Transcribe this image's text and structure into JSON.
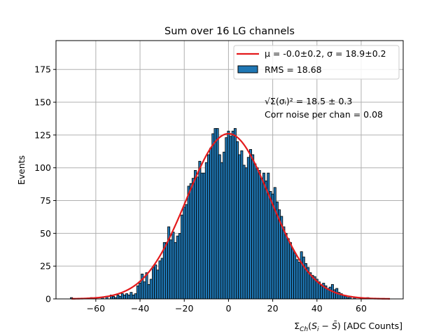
{
  "chart_data": {
    "type": "bar",
    "title": "Sum over 16 LG channels",
    "xlabel": "Σ_Ch(S_i − S̄) [ADC Counts]",
    "ylabel": "Events",
    "xlim": [
      -78,
      79
    ],
    "ylim": [
      0,
      197
    ],
    "xticks": [
      -60,
      -40,
      -20,
      0,
      20,
      40,
      60
    ],
    "yticks": [
      0,
      25,
      50,
      75,
      100,
      125,
      150,
      175
    ],
    "xtick_labels": [
      "−60",
      "−40",
      "−20",
      "0",
      "20",
      "40",
      "60"
    ],
    "ytick_labels": [
      "0",
      "25",
      "50",
      "75",
      "100",
      "125",
      "150",
      "175"
    ],
    "grid": true,
    "bin_width": 1,
    "histogram": {
      "name": "RMS = 18.68",
      "color": "#1f77b4",
      "bins": [
        [
          -71,
          1
        ],
        [
          -62,
          1
        ],
        [
          -57,
          1
        ],
        [
          -55,
          2
        ],
        [
          -53,
          3
        ],
        [
          -52,
          2
        ],
        [
          -51,
          1
        ],
        [
          -50,
          3
        ],
        [
          -49,
          2
        ],
        [
          -48,
          4
        ],
        [
          -47,
          3
        ],
        [
          -46,
          4
        ],
        [
          -45,
          3
        ],
        [
          -44,
          5
        ],
        [
          -43,
          3
        ],
        [
          -42,
          4
        ],
        [
          -41,
          10
        ],
        [
          -40,
          12
        ],
        [
          -39,
          19
        ],
        [
          -38,
          13
        ],
        [
          -37,
          20
        ],
        [
          -36,
          11
        ],
        [
          -35,
          15
        ],
        [
          -34,
          24
        ],
        [
          -33,
          26
        ],
        [
          -32,
          22
        ],
        [
          -31,
          29
        ],
        [
          -30,
          31
        ],
        [
          -29,
          43
        ],
        [
          -28,
          43
        ],
        [
          -27,
          55
        ],
        [
          -26,
          45
        ],
        [
          -25,
          51
        ],
        [
          -24,
          43
        ],
        [
          -23,
          48
        ],
        [
          -22,
          50
        ],
        [
          -21,
          64
        ],
        [
          -20,
          70
        ],
        [
          -19,
          72
        ],
        [
          -18,
          86
        ],
        [
          -17,
          88
        ],
        [
          -16,
          92
        ],
        [
          -15,
          98
        ],
        [
          -14,
          93
        ],
        [
          -13,
          105
        ],
        [
          -12,
          96
        ],
        [
          -11,
          96
        ],
        [
          -10,
          104
        ],
        [
          -9,
          110
        ],
        [
          -8,
          115
        ],
        [
          -7,
          126
        ],
        [
          -6,
          130
        ],
        [
          -5,
          130
        ],
        [
          -4,
          110
        ],
        [
          -3,
          104
        ],
        [
          -2,
          112
        ],
        [
          -1,
          123
        ],
        [
          0,
          128
        ],
        [
          1,
          124
        ],
        [
          2,
          128
        ],
        [
          3,
          130
        ],
        [
          4,
          120
        ],
        [
          5,
          110
        ],
        [
          6,
          113
        ],
        [
          7,
          102
        ],
        [
          8,
          100
        ],
        [
          9,
          108
        ],
        [
          10,
          114
        ],
        [
          11,
          110
        ],
        [
          12,
          103
        ],
        [
          13,
          100
        ],
        [
          14,
          98
        ],
        [
          15,
          92
        ],
        [
          16,
          96
        ],
        [
          17,
          90
        ],
        [
          18,
          96
        ],
        [
          19,
          82
        ],
        [
          20,
          80
        ],
        [
          21,
          85
        ],
        [
          22,
          74
        ],
        [
          23,
          68
        ],
        [
          24,
          63
        ],
        [
          25,
          55
        ],
        [
          26,
          50
        ],
        [
          27,
          46
        ],
        [
          28,
          43
        ],
        [
          29,
          38
        ],
        [
          30,
          35
        ],
        [
          31,
          30
        ],
        [
          32,
          28
        ],
        [
          33,
          36
        ],
        [
          34,
          32
        ],
        [
          35,
          27
        ],
        [
          36,
          24
        ],
        [
          37,
          20
        ],
        [
          38,
          18
        ],
        [
          39,
          17
        ],
        [
          40,
          15
        ],
        [
          41,
          13
        ],
        [
          42,
          10
        ],
        [
          43,
          12
        ],
        [
          44,
          10
        ],
        [
          45,
          8
        ],
        [
          46,
          9
        ],
        [
          47,
          11
        ],
        [
          48,
          7
        ],
        [
          49,
          8
        ],
        [
          50,
          5
        ],
        [
          51,
          4
        ],
        [
          52,
          3
        ],
        [
          53,
          2
        ],
        [
          54,
          1
        ],
        [
          55,
          2
        ],
        [
          57,
          1
        ],
        [
          60,
          1
        ],
        [
          63,
          1
        ]
      ]
    },
    "fit_curve": {
      "name": "μ = -0.0±0.2, σ = 18.9±0.2",
      "function": "gaussian",
      "amplitude": 126,
      "mu": 0.0,
      "sigma": 18.9,
      "x_range": [
        -71,
        73
      ],
      "color": "#e31a1c"
    },
    "legend_position": "top-right",
    "annotations": {
      "sum_sigma": "√Σ(σᵢ)² = 18.5 ± 0.3",
      "corr_noise": "Corr noise per chan = 0.08"
    }
  }
}
